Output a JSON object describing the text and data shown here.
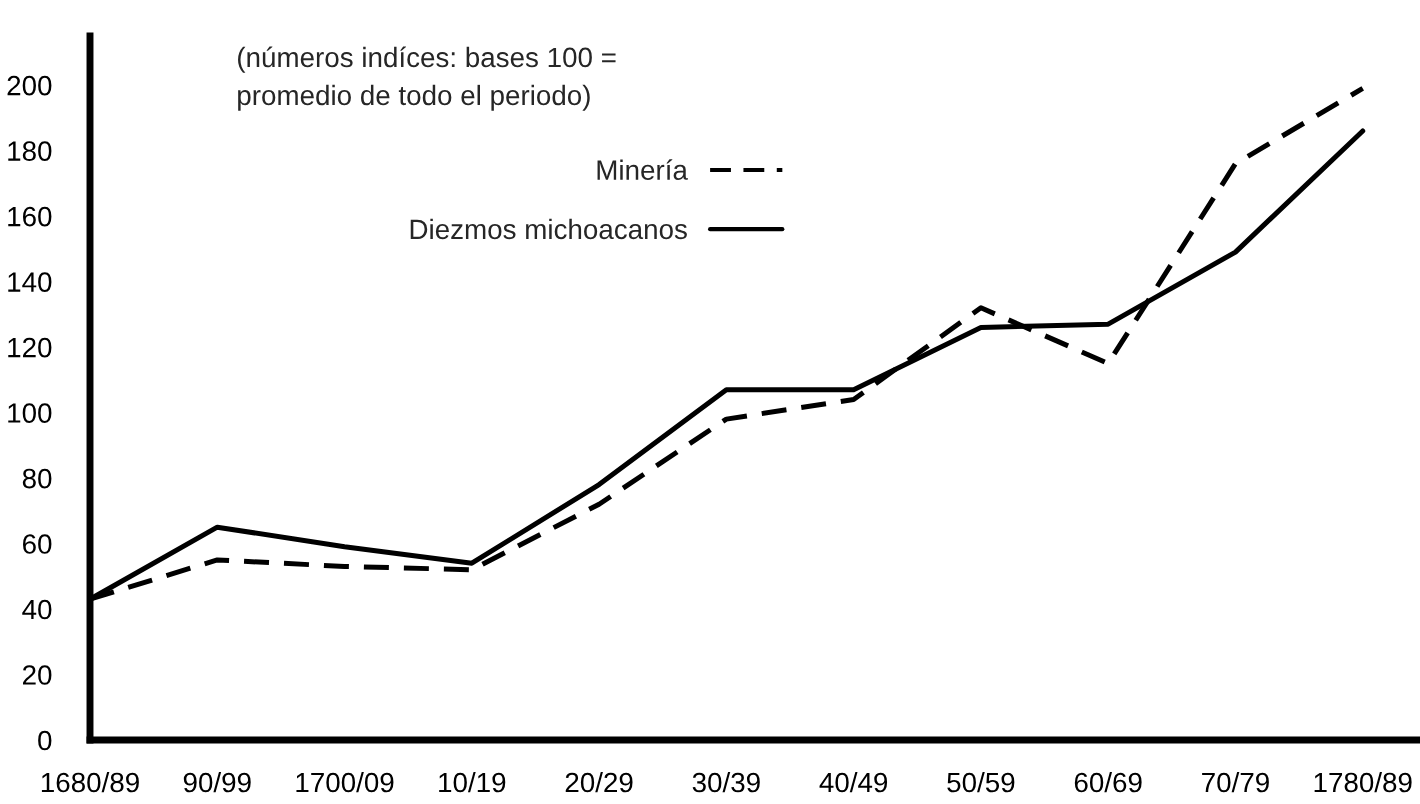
{
  "chart_data": {
    "type": "line",
    "categories": [
      "1680/89",
      "90/99",
      "1700/09",
      "10/19",
      "20/29",
      "30/39",
      "40/49",
      "50/59",
      "60/69",
      "70/79",
      "1780/89"
    ],
    "series": [
      {
        "name": "Minería",
        "color": "#000000",
        "line_style": "dashed",
        "values": [
          43,
          55,
          53,
          52,
          72,
          98,
          104,
          132,
          115,
          176,
          199
        ]
      },
      {
        "name": "Diezmos michoacanos",
        "color": "#000000",
        "line_style": "solid",
        "values": [
          43,
          65,
          59,
          54,
          78,
          107,
          107,
          126,
          127,
          149,
          186
        ]
      }
    ],
    "ylim": [
      0,
      215
    ],
    "yticks": [
      0,
      20,
      40,
      60,
      80,
      100,
      120,
      140,
      160,
      180,
      200
    ],
    "annotations": [
      "(números indíces: bases 100 =\npromedio de todo el periodo)"
    ],
    "legend": "top",
    "marker": "none",
    "grid": false
  }
}
